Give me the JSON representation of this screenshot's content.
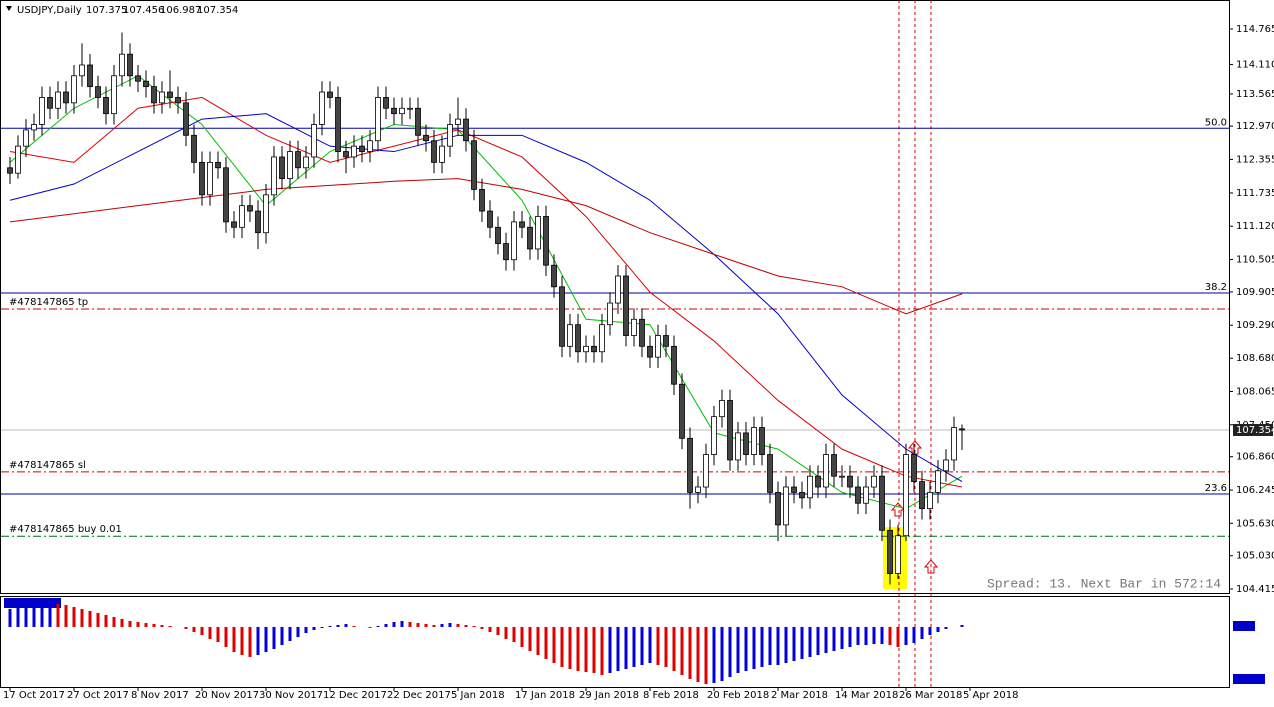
{
  "chart_data": {
    "type": "candlestick",
    "symbol": "USDJPY,Daily",
    "ohlc_header": [
      107.375,
      107.456,
      106.987,
      107.354
    ],
    "spread_text": "Spread: 13. Next Bar in 572:14",
    "ylim": [
      104.415,
      114.765
    ],
    "yticks": [
      114.765,
      {
        "value": 114.11,
        "label": "114.110"
      },
      113.565,
      {
        "value": 112.97,
        "label": "112.970"
      },
      112.355,
      111.735,
      {
        "value": 111.12,
        "label": "111.120"
      },
      110.505,
      109.905,
      {
        "value": 109.29,
        "label": "109.290"
      },
      {
        "value": 108.68,
        "label": "108.680"
      },
      108.065,
      {
        "value": 107.45,
        "label": "107.450"
      },
      {
        "value": 106.86,
        "label": "106.860"
      },
      106.245,
      {
        "value": 105.63,
        "label": "105.630"
      },
      {
        "value": 105.03,
        "label": "105.030"
      },
      104.415
    ],
    "xlabels": [
      "17 Oct 2017",
      "27 Oct 2017",
      "8 Nov 2017",
      "20 Nov 2017",
      "30 Nov 2017",
      "12 Dec 2017",
      "22 Dec 2017",
      "5 Jan 2018",
      "17 Jan 2018",
      "29 Jan 2018",
      "8 Feb 2018",
      "20 Feb 2018",
      "2 Mar 2018",
      "14 Mar 2018",
      "26 Mar 2018",
      "5 Apr 2018"
    ],
    "candles": [
      [
        112.2,
        112.4,
        111.9,
        112.1
      ],
      [
        112.1,
        112.8,
        112.0,
        112.6
      ],
      [
        112.6,
        113.1,
        112.4,
        112.9
      ],
      [
        112.9,
        113.2,
        112.7,
        113.0
      ],
      [
        113.0,
        113.7,
        112.8,
        113.5
      ],
      [
        113.5,
        113.7,
        113.1,
        113.3
      ],
      [
        113.3,
        113.8,
        113.1,
        113.6
      ],
      [
        113.6,
        113.8,
        113.2,
        113.4
      ],
      [
        113.4,
        114.1,
        113.2,
        113.9
      ],
      [
        113.9,
        114.5,
        113.7,
        114.1
      ],
      [
        114.1,
        114.3,
        113.5,
        113.7
      ],
      [
        113.7,
        113.9,
        113.3,
        113.5
      ],
      [
        113.5,
        113.7,
        113.0,
        113.2
      ],
      [
        113.2,
        114.1,
        113.0,
        113.9
      ],
      [
        113.9,
        114.7,
        113.7,
        114.3
      ],
      [
        114.3,
        114.5,
        113.7,
        113.9
      ],
      [
        113.9,
        114.1,
        113.6,
        113.8
      ],
      [
        113.8,
        114.0,
        113.5,
        113.7
      ],
      [
        113.7,
        113.9,
        113.2,
        113.4
      ],
      [
        113.4,
        113.8,
        113.2,
        113.6
      ],
      [
        113.6,
        114.0,
        113.3,
        113.5
      ],
      [
        113.5,
        113.7,
        113.2,
        113.4
      ],
      [
        113.4,
        113.6,
        112.6,
        112.8
      ],
      [
        112.8,
        113.0,
        112.1,
        112.3
      ],
      [
        112.3,
        112.5,
        111.5,
        111.7
      ],
      [
        111.7,
        112.5,
        111.5,
        112.3
      ],
      [
        112.3,
        112.5,
        112.0,
        112.2
      ],
      [
        112.2,
        112.4,
        111.0,
        111.2
      ],
      [
        111.2,
        111.4,
        110.9,
        111.1
      ],
      [
        111.1,
        111.7,
        110.9,
        111.5
      ],
      [
        111.5,
        111.7,
        111.2,
        111.4
      ],
      [
        111.4,
        111.6,
        110.7,
        111.0
      ],
      [
        111.0,
        111.9,
        110.8,
        111.7
      ],
      [
        111.7,
        112.6,
        111.5,
        112.4
      ],
      [
        112.4,
        112.6,
        111.8,
        112.0
      ],
      [
        112.0,
        112.7,
        111.8,
        112.5
      ],
      [
        112.5,
        112.7,
        112.0,
        112.2
      ],
      [
        112.2,
        112.6,
        112.0,
        112.4
      ],
      [
        112.4,
        113.2,
        112.2,
        113.0
      ],
      [
        113.0,
        113.8,
        112.8,
        113.6
      ],
      [
        113.6,
        113.8,
        113.3,
        113.5
      ],
      [
        113.5,
        113.7,
        112.3,
        112.5
      ],
      [
        112.5,
        112.7,
        112.1,
        112.4
      ],
      [
        112.4,
        112.8,
        112.2,
        112.6
      ],
      [
        112.6,
        112.8,
        112.3,
        112.5
      ],
      [
        112.5,
        112.9,
        112.3,
        112.7
      ],
      [
        112.7,
        113.7,
        112.5,
        113.5
      ],
      [
        113.5,
        113.7,
        113.1,
        113.3
      ],
      [
        113.3,
        113.5,
        113.0,
        113.2
      ],
      [
        113.2,
        113.5,
        113.0,
        113.3
      ],
      [
        113.3,
        113.5,
        113.1,
        113.3
      ],
      [
        113.3,
        113.5,
        112.6,
        112.8
      ],
      [
        112.8,
        113.0,
        112.5,
        112.7
      ],
      [
        112.7,
        112.9,
        112.1,
        112.3
      ],
      [
        112.3,
        112.8,
        112.1,
        112.6
      ],
      [
        112.6,
        113.2,
        112.4,
        113.0
      ],
      [
        113.0,
        113.5,
        112.8,
        113.1
      ],
      [
        113.1,
        113.3,
        112.5,
        112.7
      ],
      [
        112.7,
        112.9,
        111.6,
        111.8
      ],
      [
        111.8,
        112.0,
        111.2,
        111.4
      ],
      [
        111.4,
        111.6,
        110.9,
        111.1
      ],
      [
        111.1,
        111.3,
        110.6,
        110.8
      ],
      [
        110.8,
        111.0,
        110.3,
        110.5
      ],
      [
        110.5,
        111.4,
        110.3,
        111.2
      ],
      [
        111.2,
        111.4,
        110.9,
        111.1
      ],
      [
        111.1,
        111.3,
        110.5,
        110.7
      ],
      [
        110.7,
        111.5,
        110.5,
        111.3
      ],
      [
        111.3,
        111.5,
        110.2,
        110.4
      ],
      [
        110.4,
        110.6,
        109.8,
        110.0
      ],
      [
        110.0,
        110.2,
        108.7,
        108.9
      ],
      [
        108.9,
        109.5,
        108.7,
        109.3
      ],
      [
        109.3,
        109.5,
        108.6,
        108.8
      ],
      [
        108.8,
        109.1,
        108.6,
        108.9
      ],
      [
        108.9,
        109.1,
        108.6,
        108.8
      ],
      [
        108.8,
        109.5,
        108.6,
        109.3
      ],
      [
        109.3,
        109.9,
        109.1,
        109.7
      ],
      [
        109.7,
        110.4,
        109.5,
        110.2
      ],
      [
        110.2,
        110.4,
        108.9,
        109.1
      ],
      [
        109.1,
        109.6,
        108.9,
        109.4
      ],
      [
        109.4,
        109.6,
        108.7,
        108.9
      ],
      [
        108.9,
        109.1,
        108.5,
        108.7
      ],
      [
        108.7,
        109.3,
        108.5,
        109.1
      ],
      [
        109.1,
        109.3,
        108.7,
        108.9
      ],
      [
        108.9,
        109.1,
        108.0,
        108.2
      ],
      [
        108.2,
        108.4,
        107.0,
        107.2
      ],
      [
        107.2,
        107.4,
        105.9,
        106.2
      ],
      [
        106.2,
        106.5,
        106.0,
        106.3
      ],
      [
        106.3,
        107.1,
        106.1,
        106.9
      ],
      [
        106.9,
        107.8,
        106.7,
        107.6
      ],
      [
        107.6,
        108.1,
        107.4,
        107.9
      ],
      [
        107.9,
        108.1,
        106.6,
        106.8
      ],
      [
        106.8,
        107.5,
        106.6,
        107.3
      ],
      [
        107.3,
        107.5,
        106.7,
        106.9
      ],
      [
        106.9,
        107.6,
        106.7,
        107.4
      ],
      [
        107.4,
        107.6,
        106.7,
        106.9
      ],
      [
        106.9,
        107.1,
        106.0,
        106.2
      ],
      [
        106.2,
        106.4,
        105.3,
        105.6
      ],
      [
        105.6,
        106.5,
        105.4,
        106.3
      ],
      [
        106.3,
        106.5,
        106.0,
        106.2
      ],
      [
        106.2,
        106.4,
        105.9,
        106.1
      ],
      [
        106.1,
        106.7,
        105.9,
        106.5
      ],
      [
        106.5,
        106.7,
        106.1,
        106.3
      ],
      [
        106.3,
        107.1,
        106.1,
        106.9
      ],
      [
        106.9,
        107.1,
        106.3,
        106.5
      ],
      [
        106.5,
        106.7,
        106.3,
        106.5
      ],
      [
        106.5,
        106.7,
        106.1,
        106.3
      ],
      [
        106.3,
        106.5,
        105.8,
        106.0
      ],
      [
        106.0,
        106.5,
        105.8,
        106.3
      ],
      [
        106.3,
        106.7,
        106.1,
        106.5
      ],
      [
        106.5,
        106.7,
        105.3,
        105.5
      ],
      [
        105.5,
        105.7,
        104.5,
        104.7
      ],
      [
        104.7,
        105.6,
        104.6,
        105.4
      ],
      [
        105.4,
        107.1,
        105.3,
        106.9
      ],
      [
        106.9,
        107.1,
        106.2,
        106.4
      ],
      [
        106.4,
        106.6,
        105.7,
        105.9
      ],
      [
        105.9,
        106.4,
        105.7,
        106.2
      ],
      [
        106.2,
        106.8,
        106.0,
        106.6
      ],
      [
        106.6,
        107.0,
        106.4,
        106.8
      ],
      [
        106.8,
        107.6,
        106.6,
        107.4
      ],
      [
        107.375,
        107.456,
        106.987,
        107.354
      ]
    ],
    "series": [
      {
        "color": "#00c000",
        "x": [
          0,
          8,
          16,
          24,
          32,
          40,
          48,
          56,
          64,
          72,
          80,
          88,
          96,
          104,
          112,
          119
        ],
        "values": [
          112.3,
          113.3,
          113.9,
          113.0,
          111.5,
          112.5,
          113.0,
          112.9,
          111.6,
          109.4,
          109.3,
          107.3,
          107.0,
          106.2,
          105.9,
          106.5
        ]
      },
      {
        "color": "#e00000",
        "x": [
          0,
          8,
          16,
          24,
          32,
          40,
          48,
          56,
          64,
          72,
          80,
          88,
          96,
          104,
          112,
          119
        ],
        "values": [
          112.5,
          112.3,
          113.3,
          113.5,
          112.8,
          112.3,
          112.6,
          112.9,
          112.4,
          111.3,
          109.9,
          109.0,
          107.9,
          107.0,
          106.5,
          106.3
        ]
      },
      {
        "color": "#0000c8",
        "x": [
          0,
          8,
          16,
          24,
          32,
          40,
          48,
          56,
          64,
          72,
          80,
          88,
          96,
          104,
          112,
          119
        ],
        "values": [
          111.6,
          111.9,
          112.5,
          113.1,
          113.2,
          112.6,
          112.5,
          112.8,
          112.8,
          112.3,
          111.6,
          110.6,
          109.5,
          108.0,
          107.0,
          106.4
        ]
      },
      {
        "color": "#c00000",
        "x": [
          0,
          16,
          32,
          48,
          56,
          64,
          72,
          80,
          88,
          96,
          104,
          112,
          119
        ],
        "values": [
          111.2,
          111.5,
          111.8,
          111.95,
          112.0,
          111.8,
          111.5,
          111.0,
          110.6,
          110.2,
          110.0,
          109.5,
          109.87
        ]
      }
    ],
    "fibo": [
      {
        "label": "50.0",
        "value": 112.93
      },
      {
        "label": "38.2",
        "value": 109.885
      },
      {
        "label": "23.6",
        "value": 106.17
      }
    ],
    "levels": [
      {
        "label": "#478147865 tp",
        "value": 109.59,
        "color": "#d00000"
      },
      {
        "label": "#478147865 sl",
        "value": 106.58,
        "color": "#d00000"
      },
      {
        "label": "#478147865 buy 0.01",
        "value": 105.39,
        "color": "#007000"
      }
    ],
    "histogram": {
      "ylim": [
        -60,
        30
      ],
      "up_color": "#0000e0",
      "down_color": "#e00000",
      "values": [
        18,
        20,
        22,
        23,
        24,
        24,
        23,
        22,
        20,
        18,
        16,
        14,
        12,
        10,
        8,
        6,
        5,
        4,
        3,
        2,
        1,
        0,
        -2,
        -5,
        -8,
        -12,
        -15,
        -20,
        -25,
        -28,
        -30,
        -28,
        -25,
        -22,
        -18,
        -14,
        -10,
        -6,
        -3,
        -1,
        1,
        2,
        3,
        1,
        0,
        -1,
        1,
        3,
        5,
        6,
        5,
        4,
        3,
        2,
        3,
        4,
        3,
        2,
        1,
        -2,
        -5,
        -8,
        -12,
        -15,
        -20,
        -24,
        -28,
        -32,
        -36,
        -40,
        -42,
        -44,
        -45,
        -46,
        -48,
        -46,
        -44,
        -42,
        -40,
        -38,
        -36,
        -38,
        -40,
        -44,
        -48,
        -52,
        -55,
        -57,
        -56,
        -54,
        -50,
        -46,
        -44,
        -42,
        -40,
        -38,
        -38,
        -36,
        -34,
        -32,
        -30,
        -28,
        -26,
        -24,
        -22,
        -20,
        -18,
        -18,
        -17,
        -17,
        -18,
        -20,
        -18,
        -16,
        -12,
        -8,
        -5,
        -2,
        0,
        2
      ]
    }
  }
}
